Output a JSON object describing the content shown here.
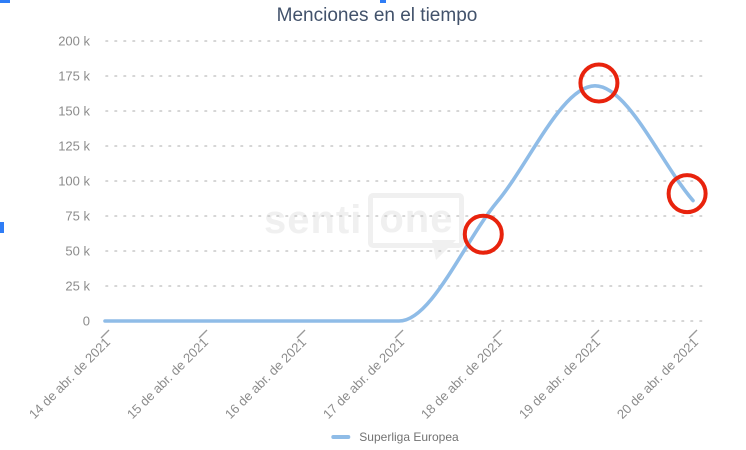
{
  "title": "Menciones en el tiempo",
  "legend": {
    "label": "Superliga Europea"
  },
  "watermark": {
    "prefix": "senti",
    "boxed": "one"
  },
  "colors": {
    "title": "#42526b",
    "axis_label": "#8c8c8c",
    "grid": "#c8c8c8",
    "line": "#8fbce7",
    "annotation": "#e8230d",
    "artifact_blue": "#2f7df6",
    "watermark": "#f0f0f0"
  },
  "chart_data": {
    "type": "line",
    "x": [
      "14 de abr. de 2021",
      "15 de abr. de 2021",
      "16 de abr. de 2021",
      "17 de abr. de 2021",
      "18 de abr. de 2021",
      "19 de abr. de 2021",
      "20 de abr. de 2021"
    ],
    "series": [
      {
        "name": "Superliga Europea",
        "values": [
          0,
          0,
          0,
          0,
          85000,
          168000,
          86000
        ]
      }
    ],
    "title": "Menciones en el tiempo",
    "xlabel": "",
    "ylabel": "",
    "ylim": [
      0,
      200000
    ],
    "ytick_step": 25000,
    "ytick_labels": [
      "0",
      "25 k",
      "50 k",
      "75 k",
      "100 k",
      "125 k",
      "150 k",
      "175 k",
      "200 k"
    ],
    "grid": "dotted",
    "legend_position": "bottom",
    "line_style": "smooth-monotone",
    "annotations": [
      {
        "type": "circle",
        "x": 3.86,
        "value": 62000
      },
      {
        "type": "circle",
        "x": 5.04,
        "value": 170000
      },
      {
        "type": "circle",
        "x": 5.94,
        "value": 91000
      }
    ]
  }
}
